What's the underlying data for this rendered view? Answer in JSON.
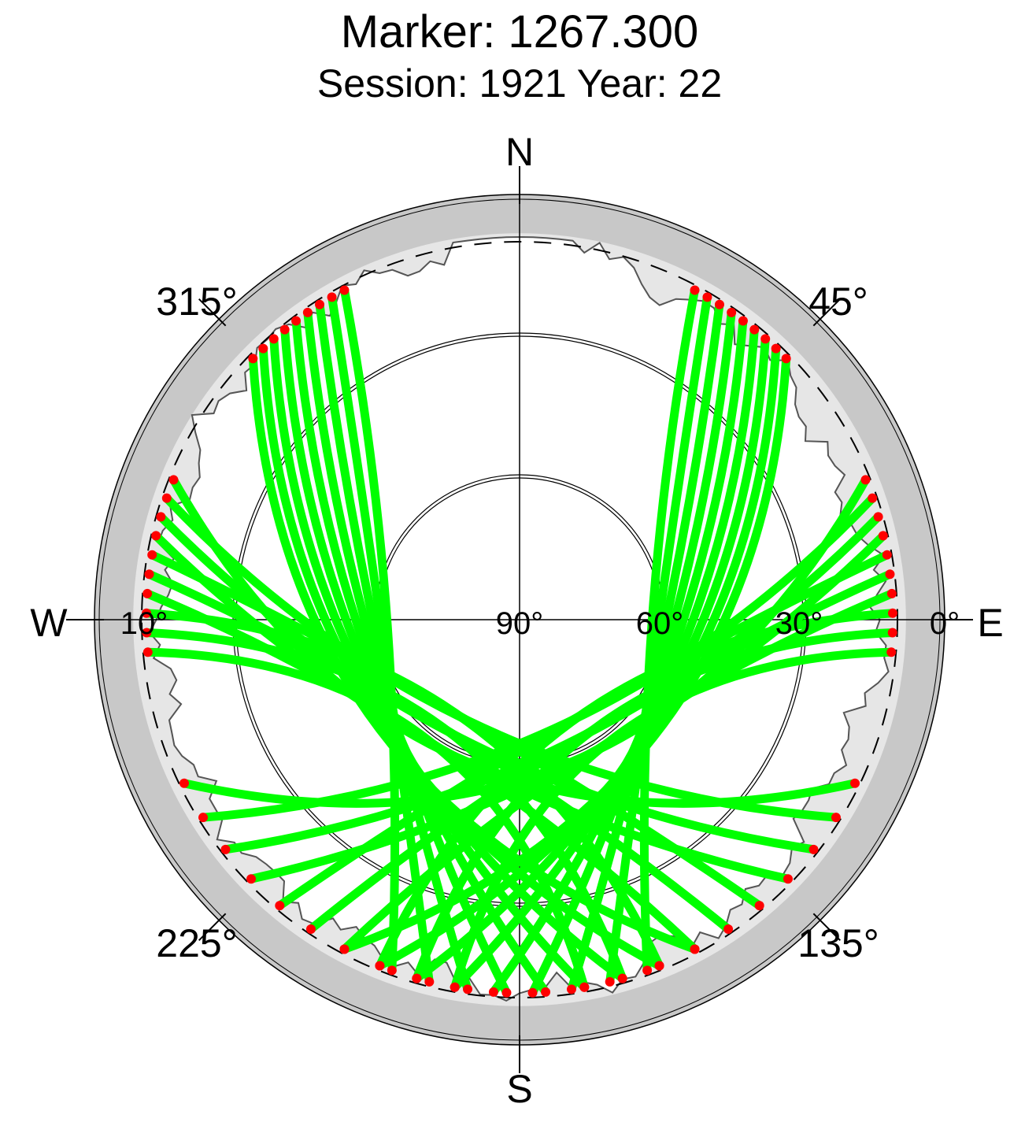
{
  "chart_data": {
    "type": "scatter",
    "projection": "polar-skyplot",
    "title": "Marker: 1267.300",
    "subtitle": "Session: 1921 Year: 22",
    "cardinals": {
      "north": "N",
      "south": "S",
      "east": "E",
      "west": "W"
    },
    "azimuth_labels": [
      {
        "text": "45°",
        "azimuth": 45
      },
      {
        "text": "135°",
        "azimuth": 135
      },
      {
        "text": "225°",
        "azimuth": 225
      },
      {
        "text": "315°",
        "azimuth": 315
      }
    ],
    "elevation_labels": [
      {
        "text": "10°",
        "elevation": 10,
        "side": "west"
      },
      {
        "text": "90°",
        "elevation": 90,
        "side": "east"
      },
      {
        "text": "60°",
        "elevation": 60,
        "side": "east"
      },
      {
        "text": "30°",
        "elevation": 30,
        "side": "east"
      },
      {
        "text": "0°",
        "elevation": 0,
        "side": "east"
      }
    ],
    "elevation_rings": [
      60,
      30
    ],
    "cutoff_elevation": 10,
    "colors": {
      "observed": "#00ff00",
      "endpoint": "#ff0000",
      "mask_outer": "#c8c8c8",
      "mask_inner": "#e6e6e6",
      "grid": "#000000"
    },
    "track_groups": [
      {
        "name_hidden": true,
        "apex_elevation": 48,
        "apex_azimuth": 0,
        "arc_half_width_deg": 120
      },
      {
        "name_hidden": true,
        "apex_elevation": 80,
        "apex_azimuth": 180,
        "arc_half_width_deg": 85
      }
    ]
  }
}
